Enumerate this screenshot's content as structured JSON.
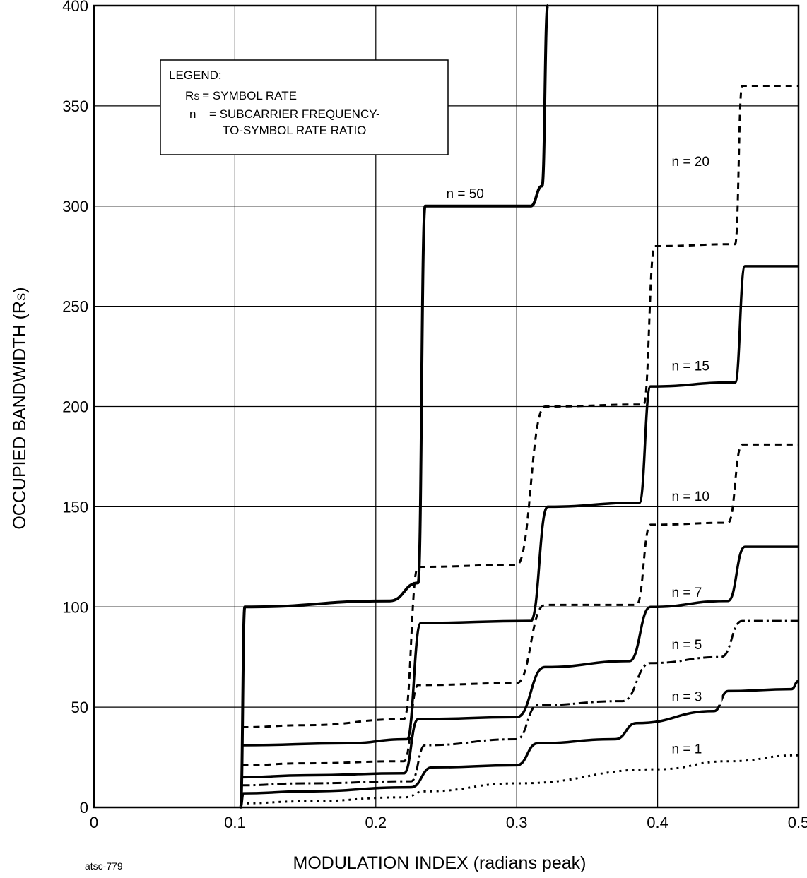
{
  "chart_data": {
    "type": "line",
    "title": "",
    "xlabel": "MODULATION INDEX (radians peak)",
    "ylabel_main": "OCCUPIED BANDWIDTH (R",
    "ylabel_sub": "S",
    "ylabel_end": ")",
    "xlim": [
      0,
      0.5
    ],
    "ylim": [
      0,
      400
    ],
    "grid": true,
    "x_ticks": [
      0,
      0.1,
      0.2,
      0.3,
      0.4,
      0.5
    ],
    "x_tick_labels": [
      "0",
      "0.1",
      "0.2",
      "0.3",
      "0.4",
      "0.5"
    ],
    "y_ticks": [
      0,
      50,
      100,
      150,
      200,
      250,
      300,
      350,
      400
    ],
    "y_tick_labels": [
      "0",
      "50",
      "100",
      "150",
      "200",
      "250",
      "300",
      "350",
      "400"
    ],
    "legend": {
      "placement": "top-left",
      "title": "LEGEND:",
      "row1_sym": "R",
      "row1_sub": "S",
      "row1_text": "= SYMBOL RATE",
      "row2_sym": "n",
      "row2_text": "= SUBCARRIER FREQUENCY-",
      "row3_text": "TO-SYMBOL RATE RATIO"
    },
    "series": [
      {
        "name": "n = 1",
        "style": "dotted",
        "width": 3,
        "label_pos": [
          0.41,
          27
        ],
        "points": [
          [
            0.104,
            2
          ],
          [
            0.15,
            3
          ],
          [
            0.22,
            5
          ],
          [
            0.235,
            8
          ],
          [
            0.3,
            12
          ],
          [
            0.4,
            19
          ],
          [
            0.45,
            23
          ],
          [
            0.5,
            26
          ]
        ]
      },
      {
        "name": "n = 3",
        "style": "solid",
        "width": 3.5,
        "label_pos": [
          0.41,
          53
        ],
        "points": [
          [
            0.104,
            0
          ],
          [
            0.106,
            7
          ],
          [
            0.15,
            8
          ],
          [
            0.225,
            10
          ],
          [
            0.24,
            20
          ],
          [
            0.3,
            21
          ],
          [
            0.315,
            32
          ],
          [
            0.37,
            34
          ],
          [
            0.385,
            42
          ],
          [
            0.44,
            48
          ],
          [
            0.45,
            58
          ],
          [
            0.495,
            59
          ],
          [
            0.5,
            63
          ]
        ]
      },
      {
        "name": "n = 5",
        "style": "dashdot",
        "width": 3,
        "label_pos": [
          0.41,
          79
        ],
        "points": [
          [
            0.104,
            11
          ],
          [
            0.15,
            12
          ],
          [
            0.225,
            13
          ],
          [
            0.235,
            31
          ],
          [
            0.3,
            34
          ],
          [
            0.315,
            51
          ],
          [
            0.375,
            53
          ],
          [
            0.395,
            72
          ],
          [
            0.445,
            75
          ],
          [
            0.46,
            93
          ],
          [
            0.5,
            93
          ]
        ]
      },
      {
        "name": "n = 7",
        "style": "solid",
        "width": 3.5,
        "label_pos": [
          0.41,
          105
        ],
        "points": [
          [
            0.105,
            15
          ],
          [
            0.15,
            16
          ],
          [
            0.22,
            17
          ],
          [
            0.23,
            44
          ],
          [
            0.3,
            45
          ],
          [
            0.32,
            70
          ],
          [
            0.38,
            73
          ],
          [
            0.395,
            100
          ],
          [
            0.45,
            103
          ],
          [
            0.462,
            130
          ],
          [
            0.5,
            130
          ]
        ]
      },
      {
        "name": "n = 10",
        "style": "dashed",
        "width": 3,
        "label_pos": [
          0.41,
          153
        ],
        "points": [
          [
            0.105,
            21
          ],
          [
            0.15,
            22
          ],
          [
            0.22,
            23
          ],
          [
            0.23,
            61
          ],
          [
            0.3,
            62
          ],
          [
            0.32,
            101
          ],
          [
            0.385,
            101
          ],
          [
            0.395,
            141
          ],
          [
            0.45,
            142
          ],
          [
            0.46,
            181
          ],
          [
            0.5,
            181
          ]
        ]
      },
      {
        "name": "n = 15",
        "style": "solid",
        "width": 3.5,
        "label_pos": [
          0.41,
          218
        ],
        "points": [
          [
            0.105,
            31
          ],
          [
            0.18,
            32
          ],
          [
            0.222,
            34
          ],
          [
            0.232,
            92
          ],
          [
            0.31,
            93
          ],
          [
            0.322,
            150
          ],
          [
            0.387,
            152
          ],
          [
            0.395,
            210
          ],
          [
            0.455,
            212
          ],
          [
            0.462,
            270
          ],
          [
            0.5,
            270
          ]
        ]
      },
      {
        "name": "n = 20",
        "style": "dashed",
        "width": 3,
        "label_pos": [
          0.41,
          320
        ],
        "points": [
          [
            0.105,
            40
          ],
          [
            0.15,
            41
          ],
          [
            0.22,
            44
          ],
          [
            0.23,
            120
          ],
          [
            0.3,
            121
          ],
          [
            0.32,
            200
          ],
          [
            0.39,
            201
          ],
          [
            0.398,
            280
          ],
          [
            0.455,
            281
          ],
          [
            0.46,
            360
          ],
          [
            0.5,
            360
          ]
        ]
      },
      {
        "name": "n = 50",
        "style": "solid",
        "width": 4,
        "label_pos": [
          0.25,
          304
        ],
        "points": [
          [
            0.104,
            0
          ],
          [
            0.107,
            100
          ],
          [
            0.21,
            103
          ],
          [
            0.23,
            112
          ],
          [
            0.235,
            300
          ],
          [
            0.31,
            300
          ],
          [
            0.318,
            310
          ],
          [
            0.322,
            400
          ]
        ]
      }
    ]
  },
  "credit": "atsc-779"
}
